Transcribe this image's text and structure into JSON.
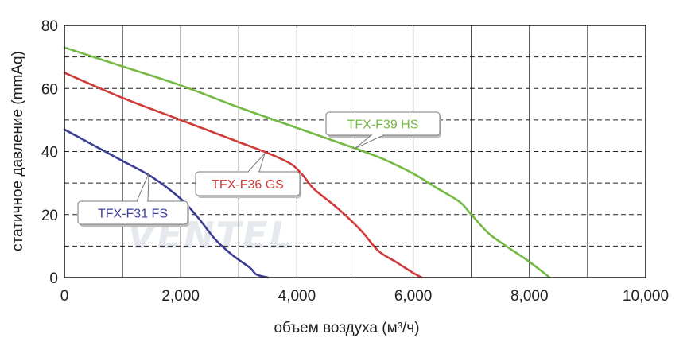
{
  "chart_data": {
    "type": "line",
    "title": "",
    "xlabel": "объем воздуха (м³/ч)",
    "ylabel": "статичное давление (mmAq)",
    "xlim": [
      0,
      10000
    ],
    "ylim": [
      0,
      80
    ],
    "x_ticks": [
      0,
      2000,
      4000,
      6000,
      8000,
      10000
    ],
    "x_tick_labels": [
      "0",
      "2,000",
      "4,000",
      "6,000",
      "8,000",
      "10,000"
    ],
    "y_ticks": [
      0,
      20,
      40,
      60,
      80
    ],
    "y_tick_labels": [
      "0",
      "20",
      "40",
      "60",
      "80"
    ],
    "grid": {
      "vertical_solid_every": 1000,
      "horizontal_dashed_every": 10
    },
    "watermark": "VENTEL",
    "series": [
      {
        "name": "TFX-F31 FS",
        "color": "#3b3d96",
        "x": [
          0,
          500,
          1000,
          1500,
          2000,
          2300,
          2600,
          2900,
          3200,
          3300,
          3500
        ],
        "y": [
          47,
          42,
          37,
          32,
          25,
          19,
          12,
          7,
          3,
          1,
          0
        ]
      },
      {
        "name": "TFX-F36 GS",
        "color": "#d03a39",
        "x": [
          0,
          1000,
          2000,
          3000,
          3500,
          3900,
          4100,
          4300,
          4700,
          5100,
          5400,
          5700,
          6000,
          6150
        ],
        "y": [
          65,
          57,
          50,
          43,
          39.5,
          36,
          32.5,
          28,
          22,
          15,
          8.5,
          5,
          1.5,
          0
        ]
      },
      {
        "name": "TFX-F39 HS",
        "color": "#74b943",
        "x": [
          0,
          1000,
          2000,
          3000,
          4000,
          5000,
          5500,
          6000,
          6400,
          6800,
          7000,
          7300,
          7600,
          8000,
          8350
        ],
        "y": [
          73,
          67,
          61,
          54,
          47.5,
          41,
          37.5,
          33,
          28.5,
          24,
          20,
          14,
          10,
          5,
          0
        ]
      }
    ],
    "callouts": [
      {
        "series": "TFX-F31 FS",
        "label": "TFX-F31 FS",
        "anchor": [
          1450,
          33
        ]
      },
      {
        "series": "TFX-F36 GS",
        "label": "TFX-F36 GS",
        "anchor": [
          3450,
          39.5
        ]
      },
      {
        "series": "TFX-F39 HS",
        "label": "TFX-F39 HS",
        "anchor": [
          5000,
          41
        ]
      }
    ]
  }
}
